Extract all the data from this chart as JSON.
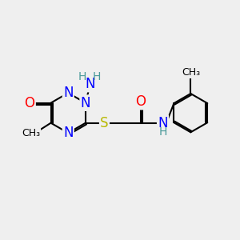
{
  "bg_color": "#efefef",
  "atom_colors": {
    "C": "#000000",
    "N": "#0000ff",
    "O": "#ff0000",
    "S": "#b8b800",
    "H": "#4a9a9a"
  },
  "bond_color": "#000000",
  "font_size_atom": 12,
  "font_size_small": 10
}
